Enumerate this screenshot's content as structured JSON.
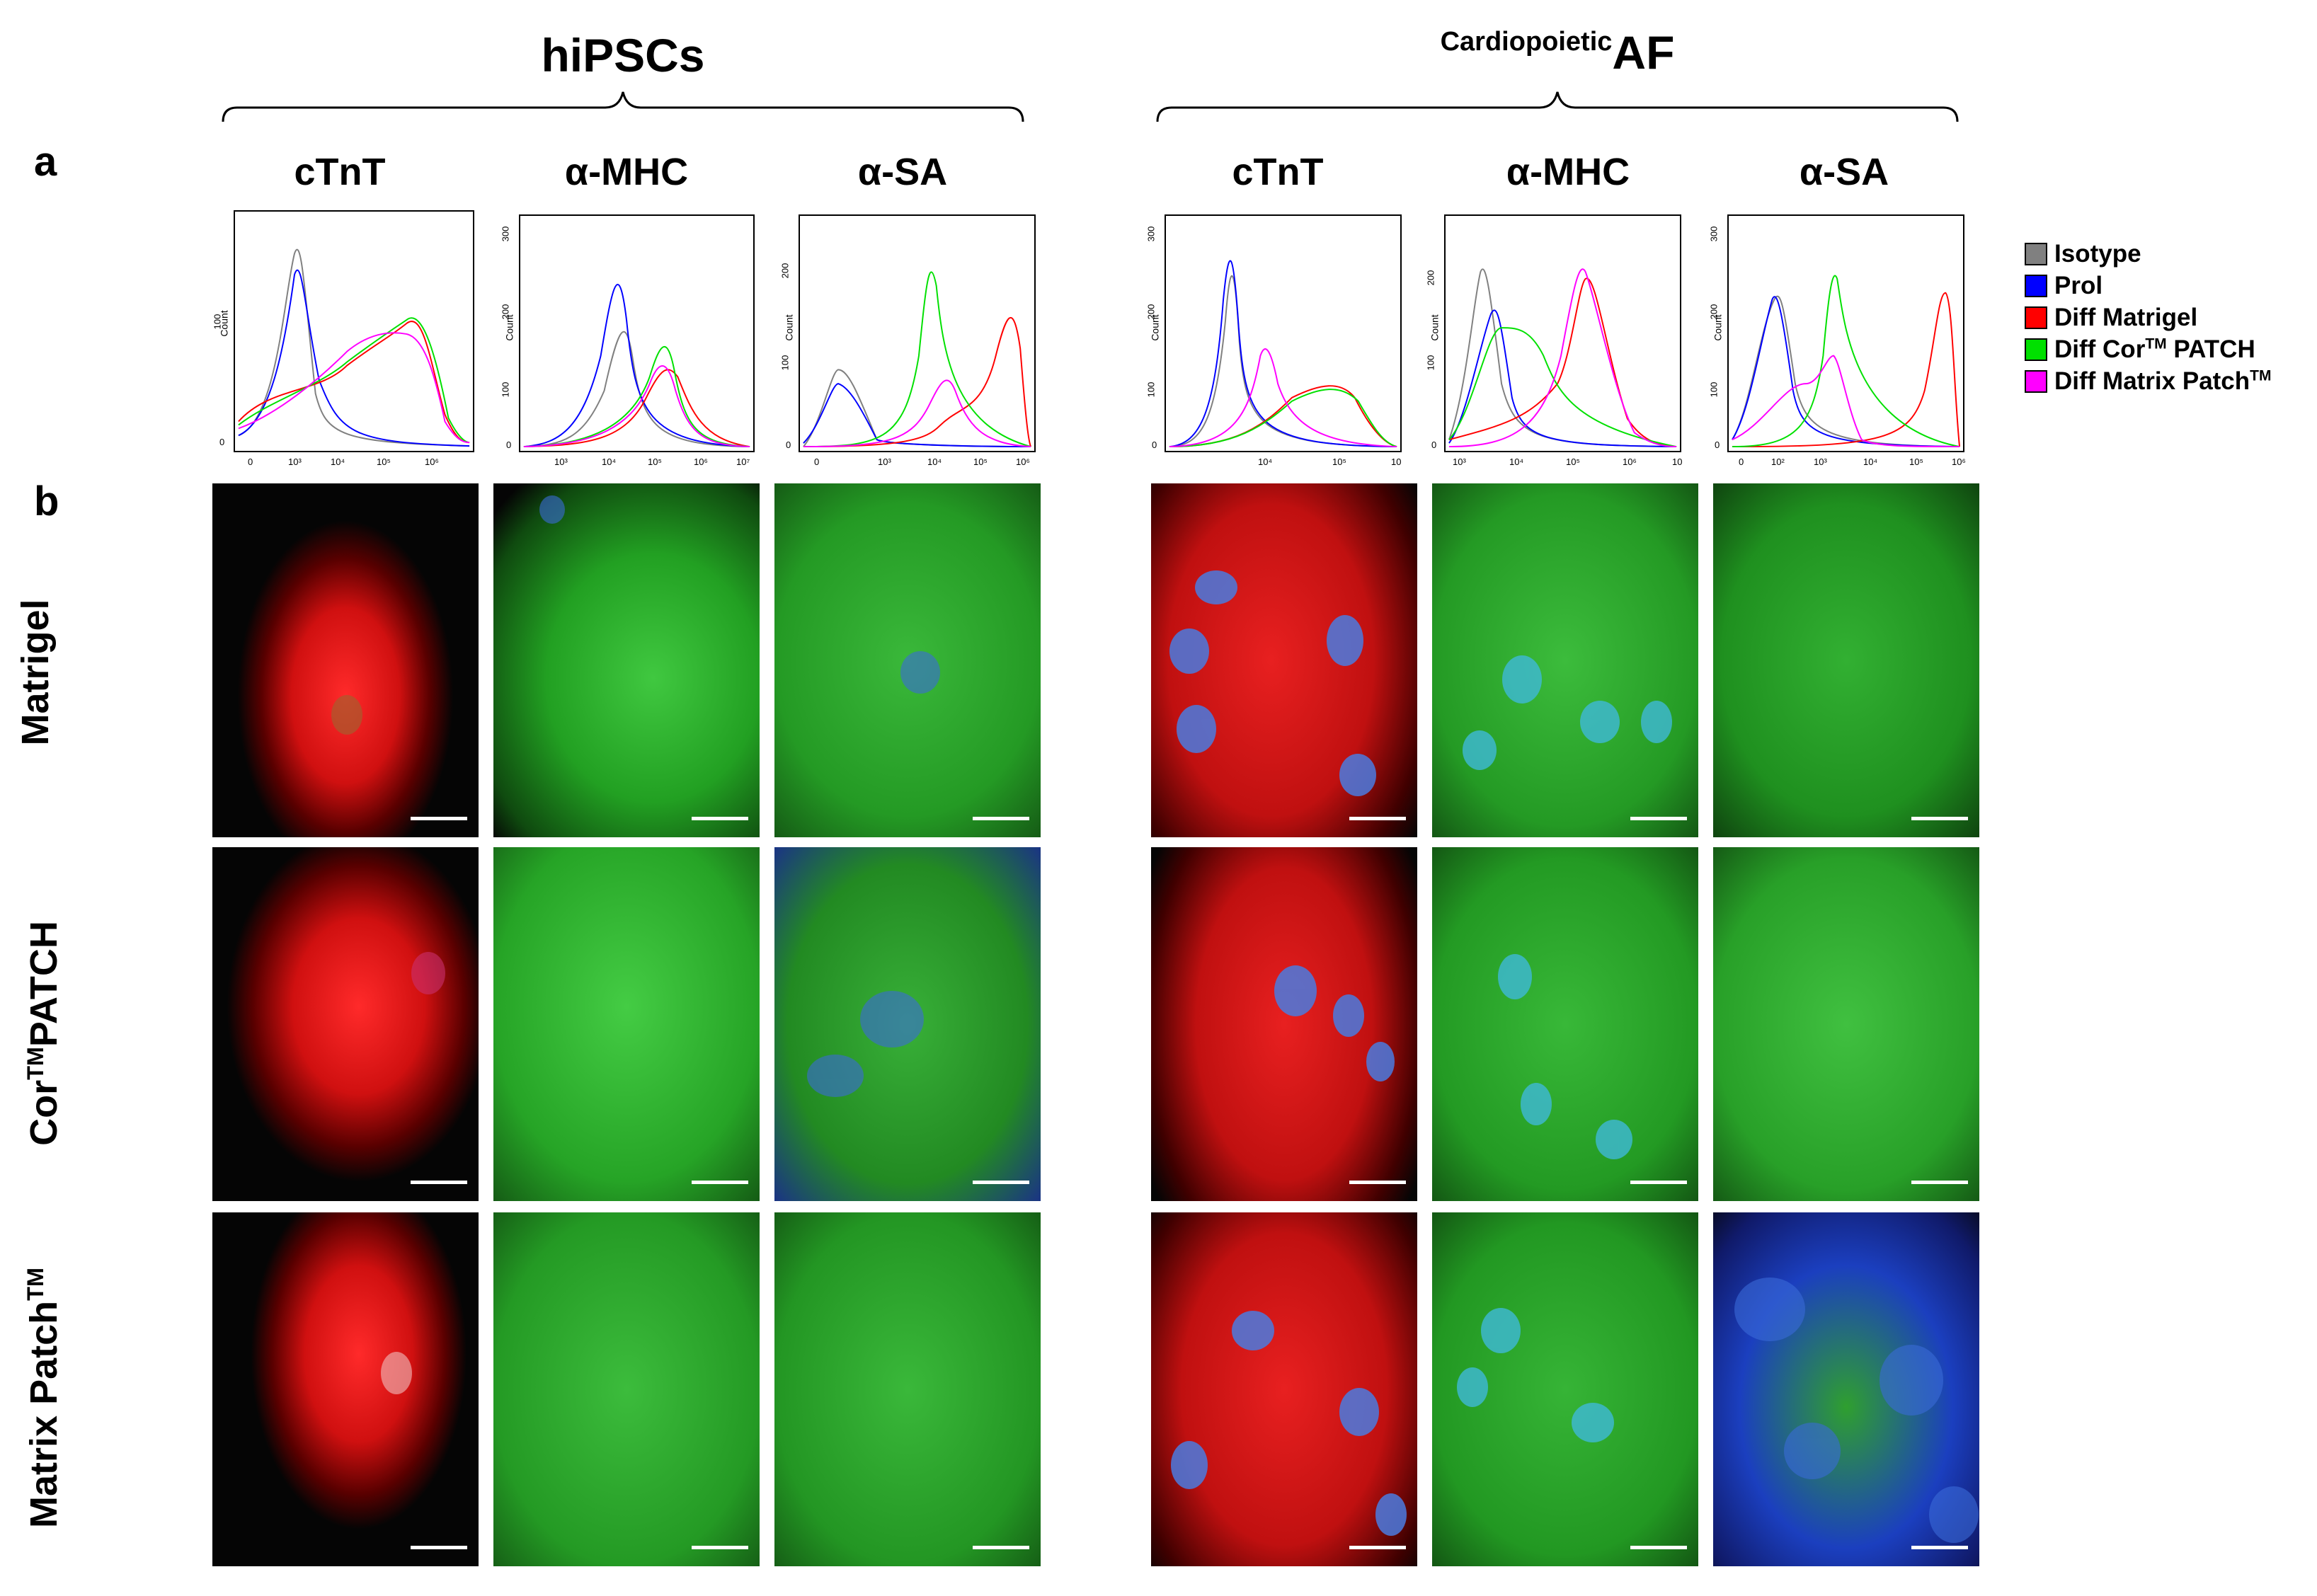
{
  "groups": [
    {
      "name": "hiPSCs",
      "prefix": ""
    },
    {
      "name": "AF",
      "prefix": "Cardiopoietic"
    }
  ],
  "panels": {
    "a": "a",
    "b": "b"
  },
  "column_headers": [
    "cTnT",
    "α-MHC",
    "α-SA",
    "cTnT",
    "α-MHC",
    "α-SA"
  ],
  "row_labels": {
    "matrigel": "Matrigel",
    "corpatch_main": "Cor",
    "corpatch_sup": "TM",
    "corpatch_tail": "PATCH",
    "matrix_main": "Matrix Patch",
    "matrix_sup": "TM"
  },
  "legend": {
    "isotype": {
      "label": "Isotype",
      "color": "#808080"
    },
    "prol": {
      "label": "Prol",
      "color": "#0000ff"
    },
    "diff_matrigel": {
      "label": "Diff Matrigel",
      "color": "#ff0000"
    },
    "diff_cor": {
      "label_main": "Diff Cor",
      "label_sup": "TM",
      "label_tail": " PATCH",
      "color": "#00e000"
    },
    "diff_matrix": {
      "label_main": "Diff Matrix Patch",
      "label_sup": "TM",
      "color": "#ff00ff"
    }
  },
  "histograms": [
    {
      "y_label": "Count",
      "y_ticks": [
        "0",
        "100"
      ],
      "x_ticks": [
        "0",
        "10³",
        "10⁴",
        "10⁵",
        "10⁶"
      ]
    },
    {
      "y_label": "Count",
      "y_ticks": [
        "0",
        "100",
        "200",
        "300"
      ],
      "x_ticks": [
        "10³",
        "10⁴",
        "10⁵",
        "10⁶",
        "10⁷"
      ]
    },
    {
      "y_label": "Count",
      "y_ticks": [
        "0",
        "100",
        "200"
      ],
      "x_ticks": [
        "0",
        "10³",
        "10⁴",
        "10⁵",
        "10⁶"
      ]
    },
    {
      "y_label": "Count",
      "y_ticks": [
        "0",
        "100",
        "200",
        "300"
      ],
      "x_ticks": [
        "10⁴",
        "10⁵",
        "10"
      ]
    },
    {
      "y_label": "Count",
      "y_ticks": [
        "0",
        "100",
        "200"
      ],
      "x_ticks": [
        "10³",
        "10⁴",
        "10⁵",
        "10⁶",
        "10"
      ]
    },
    {
      "y_label": "Count",
      "y_ticks": [
        "0",
        "100",
        "200",
        "300"
      ],
      "x_ticks": [
        "0",
        "10²",
        "10³",
        "10⁴",
        "10⁵",
        "10⁶"
      ]
    }
  ],
  "micrograph_colors": {
    "red_stain": "#e01818",
    "green_stain": "#22b022",
    "blue_stain": "#3a6ad8",
    "background": "#050505"
  }
}
